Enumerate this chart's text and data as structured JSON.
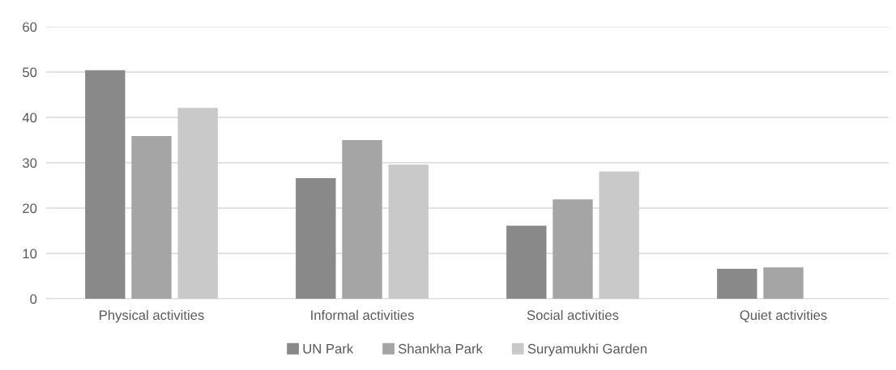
{
  "chart_data": {
    "type": "bar",
    "categories": [
      "Physical activities",
      "Informal activities",
      "Social activities",
      "Quiet activities"
    ],
    "series": [
      {
        "name": "UN Park",
        "color": "#898989",
        "values": [
          50.4,
          26.6,
          16.1,
          6.6
        ]
      },
      {
        "name": "Shankha Park",
        "color": "#a5a5a5",
        "values": [
          35.9,
          35.0,
          21.9,
          6.9
        ]
      },
      {
        "name": "Suryamukhi Garden",
        "color": "#c9c9c9",
        "values": [
          42.1,
          29.6,
          28.1,
          0
        ]
      }
    ],
    "ylim": [
      0,
      60
    ],
    "yticks": [
      0,
      10,
      20,
      30,
      40,
      50,
      60
    ],
    "grid": "y",
    "legend": "bottom"
  }
}
